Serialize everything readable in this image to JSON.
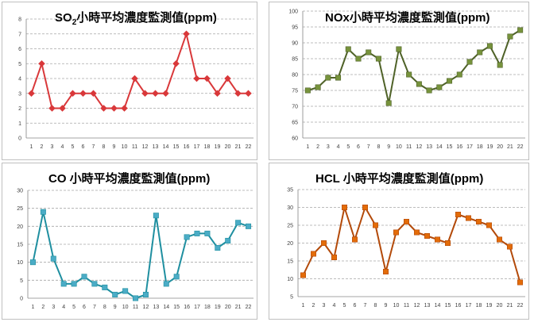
{
  "chart_data": [
    {
      "type": "line",
      "title": "SO₂小時平均濃度監測值(ppm)",
      "title_parts": [
        "SO",
        "2",
        "小時平均濃度監測值(ppm)"
      ],
      "x": [
        "1",
        "2",
        "3",
        "4",
        "5",
        "6",
        "7",
        "8",
        "9",
        "10",
        "11",
        "12",
        "13",
        "14",
        "15",
        "16",
        "17",
        "18",
        "19",
        "20",
        "21",
        "22"
      ],
      "ylim": [
        0,
        8
      ],
      "yticks": [
        0,
        1,
        2,
        3,
        4,
        5,
        6,
        7,
        8
      ],
      "values": [
        3,
        5,
        2,
        2,
        3,
        3,
        3,
        2,
        2,
        2,
        4,
        3,
        3,
        3,
        5,
        7,
        4,
        4,
        3,
        4,
        3,
        3
      ],
      "color": "#d9383a",
      "marker": "diamond",
      "grid": "dashed horizontal"
    },
    {
      "type": "line",
      "title": "NOx小時平均濃度監測值(ppm)",
      "title_parts": [
        "NOx小時平均濃度監測值(ppm)"
      ],
      "x": [
        "1",
        "2",
        "3",
        "4",
        "5",
        "6",
        "7",
        "8",
        "9",
        "10",
        "11",
        "12",
        "13",
        "14",
        "15",
        "16",
        "17",
        "18",
        "19",
        "20",
        "21",
        "22"
      ],
      "ylim": [
        60,
        100
      ],
      "yticks": [
        60,
        65,
        70,
        75,
        80,
        85,
        90,
        95,
        100
      ],
      "values": [
        75,
        76,
        79,
        79,
        88,
        85,
        87,
        85,
        71,
        88,
        80,
        77,
        75,
        76,
        78,
        80,
        84,
        87,
        89,
        83,
        92,
        94
      ],
      "color": "#4f6228",
      "marker_color": "#77933c",
      "marker": "square",
      "grid": "dashed horizontal"
    },
    {
      "type": "line",
      "title": "CO 小時平均濃度監測值(ppm)",
      "title_parts": [
        "CO 小時平均濃度監測值(ppm)"
      ],
      "x": [
        "1",
        "2",
        "3",
        "4",
        "5",
        "6",
        "7",
        "8",
        "9",
        "10",
        "11",
        "12",
        "13",
        "14",
        "15",
        "16",
        "17",
        "18",
        "19",
        "20",
        "21",
        "22"
      ],
      "ylim": [
        0,
        30
      ],
      "yticks": [
        0,
        5,
        10,
        15,
        20,
        25,
        30
      ],
      "values": [
        10,
        24,
        11,
        4,
        4,
        6,
        4,
        3,
        1,
        2,
        0,
        1,
        23,
        4,
        6,
        17,
        18,
        18,
        14,
        16,
        21,
        20
      ],
      "color": "#1f8fa0",
      "marker_color": "#4bacc6",
      "marker": "square",
      "grid": "dashed horizontal"
    },
    {
      "type": "line",
      "title": "HCL 小時平均濃度監測值(ppm)",
      "title_parts": [
        "HCL 小時平均濃度監測值(ppm)"
      ],
      "x": [
        "1",
        "2",
        "3",
        "4",
        "5",
        "6",
        "7",
        "8",
        "9",
        "10",
        "11",
        "12",
        "13",
        "14",
        "15",
        "16",
        "17",
        "18",
        "19",
        "20",
        "21",
        "22"
      ],
      "ylim": [
        5,
        35
      ],
      "yticks": [
        5,
        10,
        15,
        20,
        25,
        30,
        35
      ],
      "values": [
        11,
        17,
        20,
        16,
        30,
        21,
        30,
        25,
        12,
        23,
        26,
        23,
        22,
        21,
        20,
        28,
        27,
        26,
        25,
        21,
        19,
        9
      ],
      "color": "#b34a0a",
      "marker_color": "#e36c09",
      "marker": "square",
      "grid": "dashed horizontal"
    }
  ]
}
